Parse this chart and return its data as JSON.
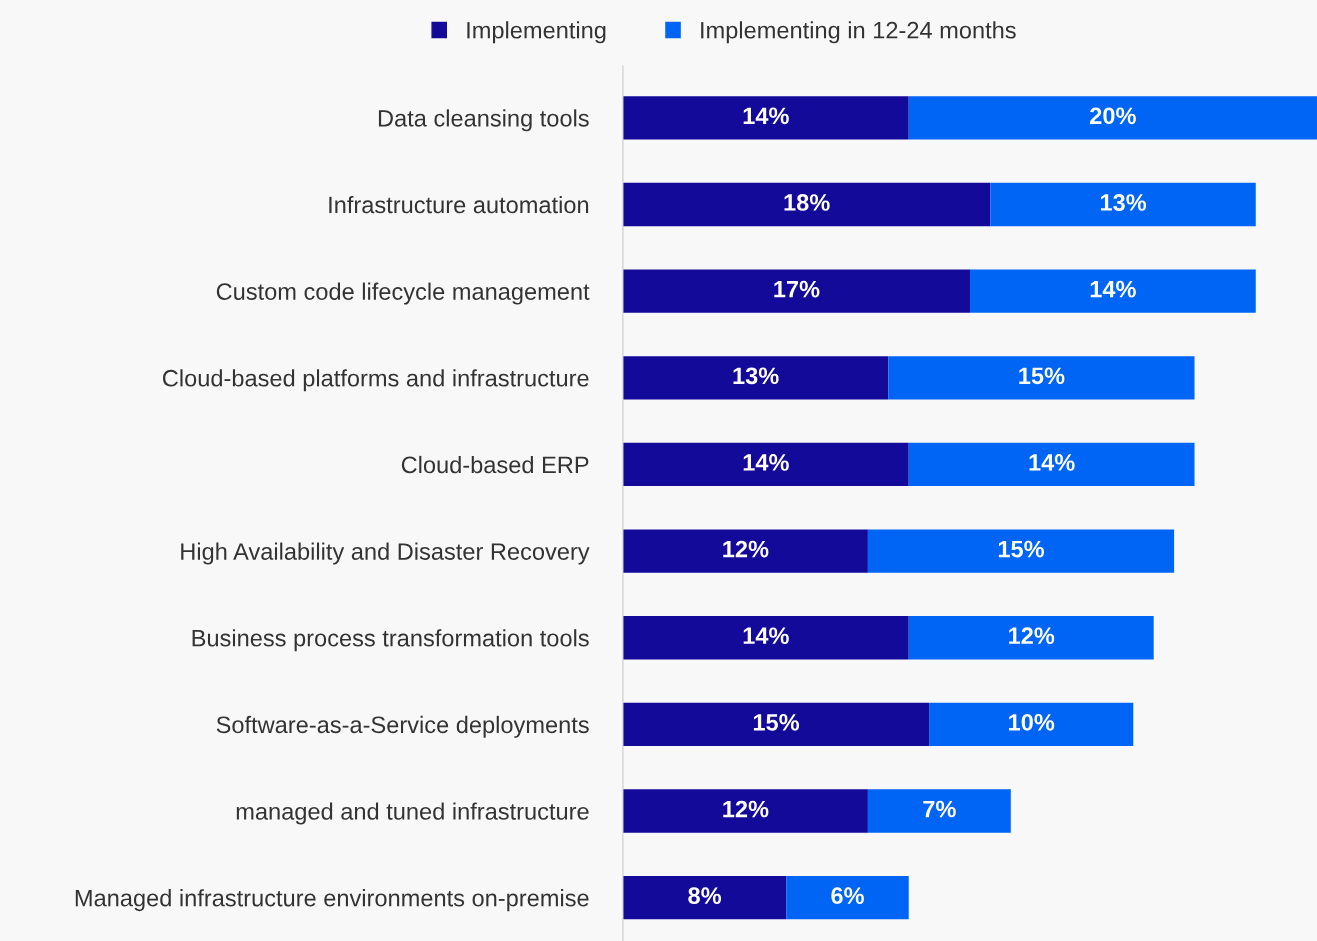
{
  "chart_data": {
    "type": "bar",
    "orientation": "horizontal",
    "stacked": true,
    "legend": "top",
    "grid": false,
    "categories": [
      "Data cleansing tools",
      "Infrastructure automation",
      "Custom code lifecycle management",
      "Cloud-based platforms and infrastructure",
      "Cloud-based ERP",
      "High Availability and Disaster Recovery",
      "Business process transformation tools",
      "Software-as-a-Service deployments",
      "managed and tuned infrastructure",
      "Managed infrastructure environments on-premise"
    ],
    "series": [
      {
        "name": "Implementing",
        "color": "#140a9a",
        "values": [
          14,
          18,
          17,
          13,
          14,
          12,
          14,
          15,
          12,
          8
        ],
        "value_labels": [
          "14%",
          "18%",
          "17%",
          "13%",
          "14%",
          "12%",
          "14%",
          "15%",
          "12%",
          "8%"
        ]
      },
      {
        "name": "Implementing in 12-24 months",
        "color": "#0064f5",
        "values": [
          20,
          13,
          14,
          15,
          14,
          15,
          12,
          10,
          7,
          6
        ],
        "value_labels": [
          "20%",
          "13%",
          "14%",
          "15%",
          "14%",
          "15%",
          "12%",
          "10%",
          "7%",
          "6%"
        ]
      }
    ]
  }
}
